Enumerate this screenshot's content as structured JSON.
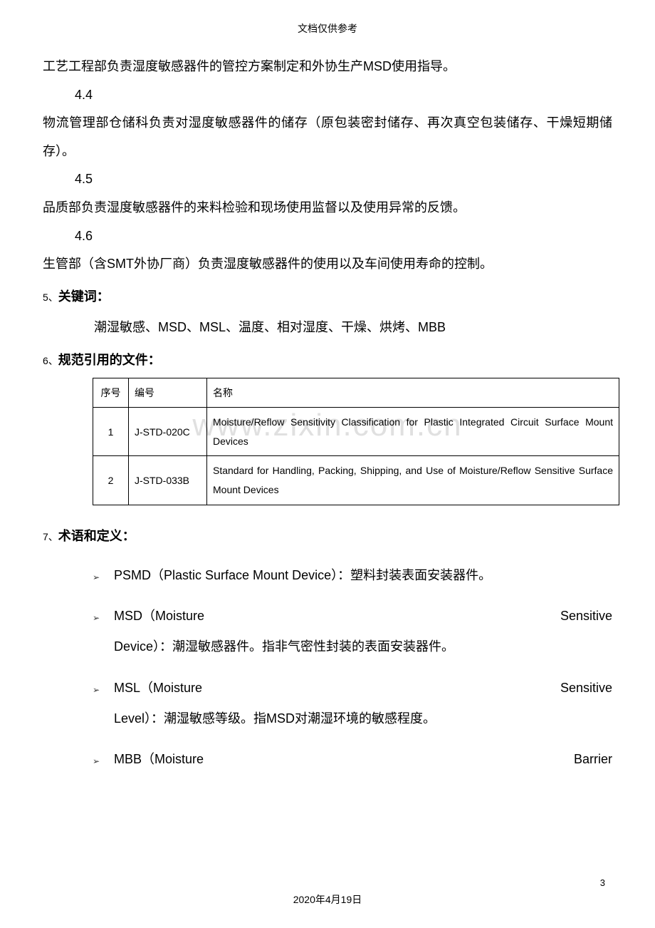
{
  "header": {
    "text": "文档仅供参考"
  },
  "watermark": "www.zixin.com.cn",
  "paragraphs": {
    "p43": "工艺工程部负责湿度敏感器件的管控方案制定和外协生产MSD使用指导。",
    "sec44": "4.4",
    "p44": "物流管理部仓储科负责对湿度敏感器件的储存（原包装密封储存、再次真空包装储存、干燥短期储存）。",
    "sec45": "4.5",
    "p45": "品质部负责湿度敏感器件的来料检验和现场使用监督以及使用异常的反馈。",
    "sec46": "4.6",
    "p46": "生管部（含SMT外协厂商）负责湿度敏感器件的使用以及车间使用寿命的控制。"
  },
  "sec5": {
    "num": "5、",
    "title": "关键词：",
    "text": "潮湿敏感、MSD、MSL、温度、相对湿度、干燥、烘烤、MBB"
  },
  "sec6": {
    "num": "6、",
    "title": "规范引用的文件：",
    "table": {
      "headers": {
        "seq": "序号",
        "code": "编号",
        "name": "名称"
      },
      "rows": [
        {
          "seq": "1",
          "code": "J-STD-020C",
          "name": "Moisture/Reflow Sensitivity Classification for Plastic Integrated Circuit Surface Mount Devices"
        },
        {
          "seq": "2",
          "code": "J-STD-033B",
          "name": "Standard for Handling, Packing, Shipping, and Use of Moisture/Reflow Sensitive Surface Mount Devices"
        }
      ]
    }
  },
  "sec7": {
    "num": "7、",
    "title": "术语和定义：",
    "terms": [
      {
        "line1_left": "PSMD（Plastic Surface Mount Device）：塑料封装表面安装器件。",
        "line1_right": "",
        "line2": "",
        "justified": false
      },
      {
        "line1_left": "MSD（Moisture",
        "line1_right": "Sensitive",
        "line2": "Device）：潮湿敏感器件。指非气密性封装的表面安装器件。",
        "justified": true
      },
      {
        "line1_left": "MSL（Moisture",
        "line1_right": "Sensitive",
        "line2": "Level）：潮湿敏感等级。指MSD对潮湿环境的敏感程度。",
        "justified": true
      },
      {
        "line1_left": "MBB（Moisture",
        "line1_right": "Barrier",
        "line2": "",
        "justified": true
      }
    ]
  },
  "footer": {
    "page_number": "3",
    "date": "2020年4月19日"
  }
}
